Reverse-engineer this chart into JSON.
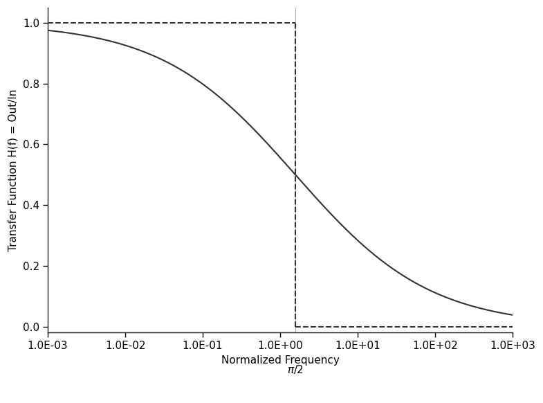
{
  "title": "",
  "xlabel": "Normalized Frequency",
  "ylabel": "Transfer Function H(f) = Out/In",
  "pi_half": 1.5707963267948966,
  "xlim_log": [
    -3,
    3
  ],
  "ylim": [
    -0.02,
    1.05
  ],
  "background_color": "#ffffff",
  "curve_color": "#333333",
  "dashed_color": "#333333",
  "gray_line_color": "#aaaaaa",
  "xtick_labels": [
    "1.0E-03",
    "1.0E-02",
    "1.0E-01",
    "1.0E+00",
    "1.0E+01",
    "1.0E+02",
    "1.0E+03"
  ],
  "xtick_values": [
    0.001,
    0.01,
    0.1,
    1.0,
    10.0,
    100.0,
    1000.0
  ],
  "ytick_values": [
    0.0,
    0.2,
    0.4,
    0.6,
    0.8,
    1.0
  ],
  "ytick_labels": [
    "0.0",
    "0.2",
    "0.4",
    "0.6",
    "0.8",
    "1.0"
  ],
  "curve_linewidth": 1.5,
  "dashed_linewidth": 1.5,
  "gray_linewidth": 0.7,
  "font_size": 11,
  "n_order": 1
}
